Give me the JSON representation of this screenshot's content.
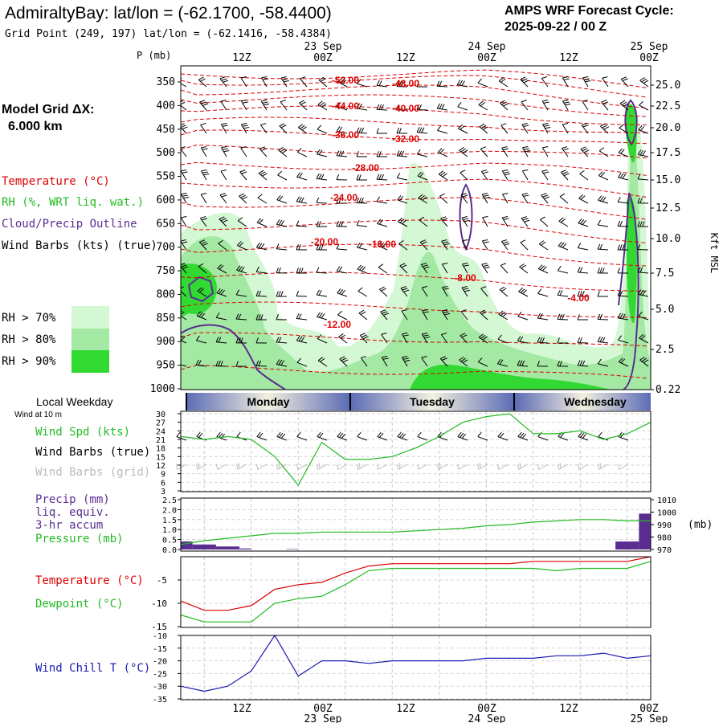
{
  "header": {
    "title": "AdmiraltyBay:  lat/lon = (-62.1700, -58.4400)",
    "subtitle": "Grid Point (249, 197) lat/lon = (-62.1416, -58.4384)",
    "cycle_line1": "AMPS WRF Forecast Cycle:",
    "cycle_line2": "2025-09-22 / 00  Z",
    "model_grid_label": "Model Grid ΔX:",
    "model_grid_value": "6.000 km"
  },
  "time_axis": {
    "hour_labels": [
      "12Z",
      "00Z",
      "12Z",
      "00Z",
      "12Z",
      "00Z"
    ],
    "date_labels": [
      "23 Sep",
      "24 Sep",
      "25 Sep"
    ]
  },
  "legend": {
    "temperature": "Temperature (°C)",
    "rh": "RH (%, WRT liq. wat.)",
    "cloud": "Cloud/Precip Outline",
    "wind_barbs": "Wind Barbs (kts) (true)",
    "rh70": "RH > 70%",
    "rh80": "RH > 80%",
    "rh90": "RH > 90%",
    "colors": {
      "rh70": "#d4f7d4",
      "rh80": "#a3e8a3",
      "rh90": "#33d933",
      "temp": "#dd0000",
      "cloud": "#5a2d91",
      "wind_speed": "#22bb22",
      "wind_chill": "#1a1ab0"
    }
  },
  "weekday_bar": {
    "title": "Local Weekday",
    "wind_note": "Wind at 10 m",
    "days": [
      "Monday",
      "Tuesday",
      "Wednesday"
    ]
  },
  "charts": [
    {
      "id": "cross-section",
      "type": "contour",
      "ylabel_left": "P (mb)",
      "ylabel_right": "Kft MSL",
      "pressure_ticks": [
        "350",
        "400",
        "450",
        "500",
        "550",
        "600",
        "650",
        "700",
        "750",
        "800",
        "850",
        "900",
        "950",
        "1000"
      ],
      "height_ticks": [
        "25.0",
        "22.5",
        "20.0",
        "17.5",
        "15.0",
        "12.5",
        "10.0",
        "7.5",
        "5.0",
        "2.5",
        "0.22"
      ],
      "temp_contour_labels": [
        "-52.00",
        "-48.00",
        "-44.00",
        "-40.00",
        "-36.00",
        "-32.00",
        "-28.00",
        "-24.00",
        "-20.00",
        "-16.00",
        "-12.00",
        "-8.00",
        "-4.00"
      ]
    },
    {
      "id": "wind-panel",
      "type": "line",
      "labels": [
        "Wind Spd (kts)",
        "Wind Barbs (true)",
        "Wind Barbs (grid)"
      ],
      "y_ticks": [
        "30",
        "27",
        "24",
        "21",
        "18",
        "15",
        "12",
        "9",
        "6",
        "3"
      ],
      "ylim": [
        3,
        30
      ],
      "series": [
        {
          "name": "Wind Spd (kts)",
          "x_hours": [
            0,
            6,
            12,
            18,
            24,
            30,
            36,
            42,
            48,
            54,
            60,
            66,
            72,
            78,
            84,
            90,
            96,
            102,
            108,
            114,
            120
          ],
          "values": [
            22,
            21,
            22,
            21,
            15,
            5,
            20,
            14,
            14,
            15,
            18,
            22,
            27,
            29,
            30,
            23,
            23,
            24,
            21,
            23,
            27
          ]
        }
      ]
    },
    {
      "id": "precip-panel",
      "type": "bar+line",
      "labels": [
        "Precip (mm)",
        "liq. equiv.",
        "3-hr accum",
        "Pressure (mb)"
      ],
      "y_ticks_left": [
        "2.5",
        "2.0",
        "1.5",
        "1.0",
        "0.5",
        "0.0"
      ],
      "y_ticks_right": [
        "1010",
        "1000",
        "990",
        "980",
        "970"
      ],
      "unit_right": "(mb)",
      "ylim_left": [
        0,
        2.5
      ],
      "ylim_right": [
        970,
        1010
      ],
      "precip_bars": [
        {
          "start_h": 0,
          "end_h": 3,
          "value": 0.4
        },
        {
          "start_h": 3,
          "end_h": 9,
          "value": 0.25
        },
        {
          "start_h": 9,
          "end_h": 15,
          "value": 0.15
        },
        {
          "start_h": 15,
          "end_h": 18,
          "value": 0.05
        },
        {
          "start_h": 27,
          "end_h": 30,
          "value": 0.02
        },
        {
          "start_h": 111,
          "end_h": 117,
          "value": 0.4
        },
        {
          "start_h": 117,
          "end_h": 120,
          "value": 1.8
        }
      ],
      "pressure_series": {
        "name": "Pressure (mb)",
        "x_hours": [
          0,
          6,
          12,
          18,
          24,
          30,
          36,
          42,
          48,
          54,
          60,
          66,
          72,
          78,
          84,
          90,
          96,
          102,
          108,
          114,
          120
        ],
        "values": [
          974,
          977,
          979,
          981,
          983,
          983,
          984,
          984,
          984,
          984,
          985,
          986,
          987,
          989,
          990,
          992,
          993,
          994,
          994,
          993,
          993
        ]
      }
    },
    {
      "id": "temp-panel",
      "type": "line",
      "y_ticks": [
        "-5",
        "-10",
        "-15"
      ],
      "ylim": [
        -15,
        0
      ],
      "series": [
        {
          "name": "Temperature (°C)",
          "color": "#dd0000",
          "x_hours": [
            0,
            6,
            12,
            18,
            24,
            30,
            36,
            42,
            48,
            54,
            60,
            66,
            72,
            78,
            84,
            90,
            96,
            102,
            108,
            114,
            120
          ],
          "values": [
            -9.5,
            -11.5,
            -11.5,
            -10.5,
            -7,
            -6,
            -5.5,
            -3.5,
            -2,
            -1.5,
            -1.5,
            -1.5,
            -1.5,
            -1.5,
            -1.5,
            -1,
            -1,
            -1,
            -1,
            -1,
            0
          ]
        },
        {
          "name": "Dewpoint (°C)",
          "color": "#22bb22",
          "x_hours": [
            0,
            6,
            12,
            18,
            24,
            30,
            36,
            42,
            48,
            54,
            60,
            66,
            72,
            78,
            84,
            90,
            96,
            102,
            108,
            114,
            120
          ],
          "values": [
            -12.5,
            -14,
            -14,
            -14,
            -10,
            -9,
            -8.5,
            -6,
            -3,
            -2.5,
            -2.5,
            -2.5,
            -2.5,
            -2.5,
            -2.5,
            -2.5,
            -3,
            -2.5,
            -2.5,
            -2.5,
            -1
          ]
        }
      ]
    },
    {
      "id": "windchill-panel",
      "type": "line",
      "y_ticks": [
        "-10",
        "-15",
        "-20",
        "-25",
        "-30",
        "-35"
      ],
      "ylim": [
        -35,
        -10
      ],
      "series": [
        {
          "name": "Wind Chill T (°C)",
          "color": "#1a1ab0",
          "x_hours": [
            0,
            6,
            12,
            18,
            24,
            30,
            36,
            42,
            48,
            54,
            60,
            66,
            72,
            78,
            84,
            90,
            96,
            102,
            108,
            114,
            120
          ],
          "values": [
            -30,
            -32,
            -30,
            -24,
            -10,
            -26,
            -20,
            -20,
            -21,
            -20,
            -20,
            -20,
            -20,
            -19,
            -19,
            -19,
            -18,
            -18,
            -17,
            -19,
            -18
          ]
        }
      ]
    }
  ]
}
